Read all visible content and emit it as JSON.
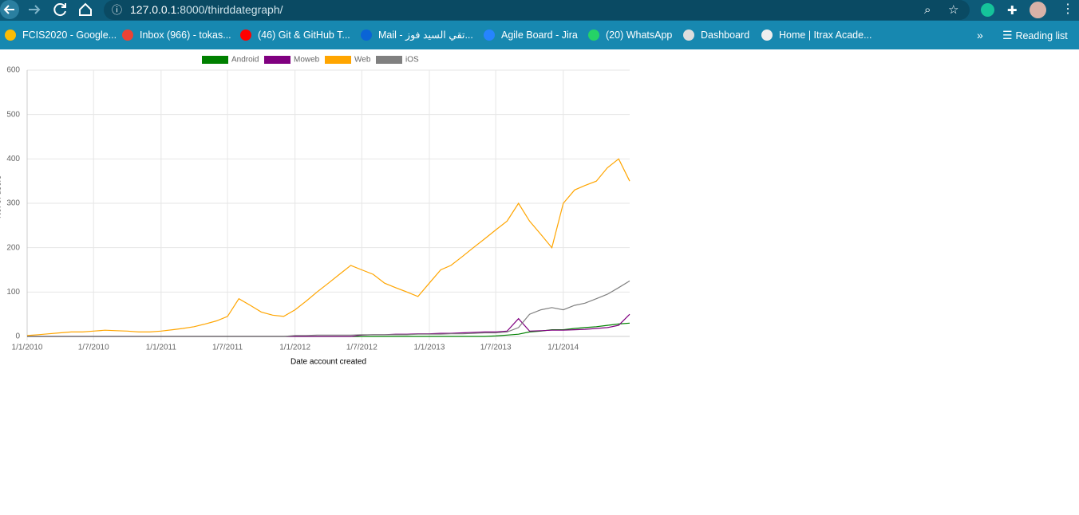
{
  "browser": {
    "url_host": "127.0.0.1",
    "url_path": ":8000/thirddategraph/",
    "bookmarks": [
      "FCIS2020 - Google...",
      "Inbox (966) - tokas...",
      "(46) Git & GitHub T...",
      "Mail - تقي السيد فوز...",
      "Agile Board - Jira",
      "(20) WhatsApp",
      "Dashboard",
      "Home | Itrax Acade..."
    ],
    "reading_list": "Reading list"
  },
  "chart_data": {
    "type": "line",
    "xlabel": "Date account created",
    "ylabel": "No. of users",
    "x": [
      "2010-01-01",
      "2010-02-01",
      "2010-03-01",
      "2010-04-01",
      "2010-05-01",
      "2010-06-01",
      "2010-07-01",
      "2010-08-01",
      "2010-09-01",
      "2010-10-01",
      "2010-11-01",
      "2010-12-01",
      "2011-01-01",
      "2011-02-01",
      "2011-03-01",
      "2011-04-01",
      "2011-05-01",
      "2011-06-01",
      "2011-07-01",
      "2011-08-01",
      "2011-09-01",
      "2011-10-01",
      "2011-11-01",
      "2011-12-01",
      "2012-01-01",
      "2012-02-01",
      "2012-03-01",
      "2012-04-01",
      "2012-05-01",
      "2012-06-01",
      "2012-07-01",
      "2012-08-01",
      "2012-09-01",
      "2012-10-01",
      "2012-11-01",
      "2012-12-01",
      "2013-01-01",
      "2013-02-01",
      "2013-03-01",
      "2013-04-01",
      "2013-05-01",
      "2013-06-01",
      "2013-07-01",
      "2013-08-01",
      "2013-09-01",
      "2013-10-01",
      "2013-11-01",
      "2013-12-01",
      "2014-01-01",
      "2014-02-01",
      "2014-03-01",
      "2014-04-01",
      "2014-05-01",
      "2014-06-01",
      "2014-07-01"
    ],
    "series": [
      {
        "name": "Android",
        "color": "#008000",
        "values": [
          0,
          0,
          0,
          0,
          0,
          0,
          0,
          0,
          0,
          0,
          0,
          0,
          0,
          0,
          0,
          0,
          0,
          0,
          0,
          0,
          0,
          0,
          0,
          0,
          0,
          0,
          0,
          0,
          0,
          0,
          0,
          0,
          0,
          0,
          0,
          0,
          0,
          0,
          0,
          0,
          0,
          0,
          1,
          3,
          5,
          10,
          12,
          15,
          15,
          18,
          20,
          22,
          25,
          28,
          30
        ]
      },
      {
        "name": "Moweb",
        "color": "#800080",
        "values": [
          0,
          0,
          0,
          0,
          0,
          0,
          0,
          0,
          0,
          0,
          0,
          0,
          0,
          0,
          0,
          0,
          0,
          0,
          0,
          0,
          0,
          0,
          0,
          0,
          0,
          0,
          0,
          0,
          0,
          0,
          3,
          4,
          4,
          5,
          5,
          6,
          6,
          7,
          7,
          8,
          9,
          10,
          10,
          12,
          40,
          12,
          13,
          14,
          14,
          15,
          16,
          18,
          20,
          25,
          50
        ]
      },
      {
        "name": "Web",
        "color": "#ffa500",
        "values": [
          2,
          4,
          6,
          8,
          10,
          10,
          12,
          14,
          13,
          12,
          10,
          10,
          12,
          15,
          18,
          22,
          28,
          35,
          45,
          85,
          70,
          55,
          48,
          45,
          60,
          80,
          100,
          120,
          140,
          160,
          150,
          140,
          120,
          110,
          100,
          90,
          120,
          150,
          160,
          180,
          200,
          220,
          240,
          260,
          300,
          260,
          230,
          200,
          300,
          330,
          340,
          350,
          380,
          400,
          350
        ]
      },
      {
        "name": "iOS",
        "color": "#808080",
        "values": [
          0,
          0,
          0,
          0,
          0,
          0,
          0,
          0,
          0,
          0,
          0,
          0,
          0,
          0,
          0,
          0,
          0,
          0,
          0,
          0,
          0,
          0,
          0,
          0,
          2,
          2,
          3,
          3,
          3,
          3,
          4,
          4,
          4,
          4,
          4,
          5,
          5,
          5,
          6,
          6,
          7,
          8,
          8,
          10,
          20,
          50,
          60,
          65,
          60,
          70,
          75,
          85,
          95,
          110,
          125
        ]
      }
    ],
    "xlim": [
      "2010-01-01",
      "2014-07-01"
    ],
    "xticks": [
      {
        "value": "2010-01-01",
        "label": "1/1/2010"
      },
      {
        "value": "2010-07-01",
        "label": "1/7/2010"
      },
      {
        "value": "2011-01-01",
        "label": "1/1/2011"
      },
      {
        "value": "2011-07-01",
        "label": "1/7/2011"
      },
      {
        "value": "2012-01-01",
        "label": "1/1/2012"
      },
      {
        "value": "2012-07-01",
        "label": "1/7/2012"
      },
      {
        "value": "2013-01-01",
        "label": "1/1/2013"
      },
      {
        "value": "2013-07-01",
        "label": "1/7/2013"
      },
      {
        "value": "2014-01-01",
        "label": "1/1/2014"
      }
    ],
    "ylim": [
      0,
      600
    ],
    "yticks": [
      0,
      100,
      200,
      300,
      400,
      500,
      600
    ],
    "grid": true,
    "legend": "top"
  }
}
